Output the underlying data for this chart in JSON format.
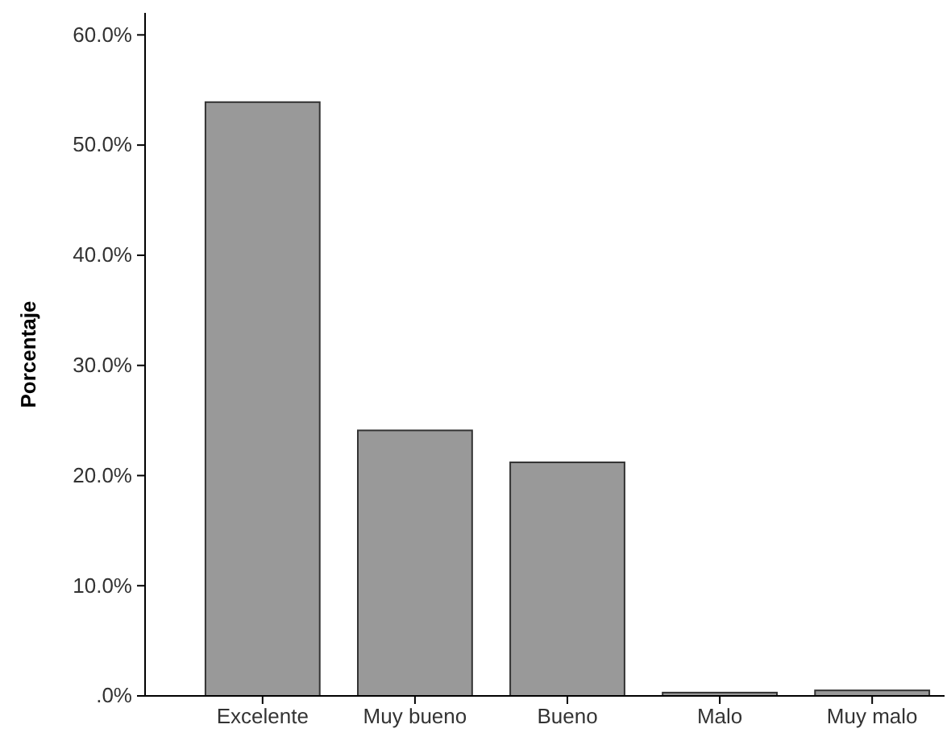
{
  "chart_data": {
    "type": "bar",
    "ylabel": "Porcentaje",
    "categories": [
      "Excelente",
      "Muy bueno",
      "Bueno",
      "Malo",
      "Muy malo"
    ],
    "values": [
      53.9,
      24.1,
      21.2,
      0.3,
      0.5
    ],
    "color": "#999999",
    "ylim": [
      0,
      62
    ],
    "yticks": [
      {
        "value": 0,
        "label": ".0%"
      },
      {
        "value": 10,
        "label": "10.0%"
      },
      {
        "value": 20,
        "label": "20.0%"
      },
      {
        "value": 30,
        "label": "30.0%"
      },
      {
        "value": 40,
        "label": "40.0%"
      },
      {
        "value": 50,
        "label": "50.0%"
      },
      {
        "value": 60,
        "label": "60.0%"
      }
    ],
    "grid": false
  }
}
